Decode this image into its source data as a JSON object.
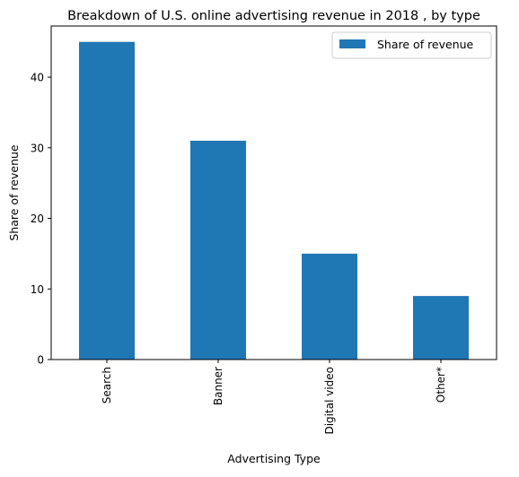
{
  "chart_data": {
    "type": "bar",
    "title": "Breakdown of U.S. online advertising revenue in 2018 , by type",
    "xlabel": "Advertising Type",
    "ylabel": "Share of revenue",
    "categories": [
      "Search",
      "Banner",
      "Digital video",
      "Other*"
    ],
    "series": [
      {
        "name": "Share of revenue",
        "values": [
          45,
          31,
          15,
          9
        ]
      }
    ],
    "ylim": [
      0,
      47.25
    ],
    "yticks": [
      0,
      10,
      20,
      30,
      40
    ],
    "legend_position": "top-right",
    "grid": false,
    "colors": {
      "bar": "#1f77b4",
      "axis": "#000000",
      "legend_border": "#cccccc"
    }
  }
}
